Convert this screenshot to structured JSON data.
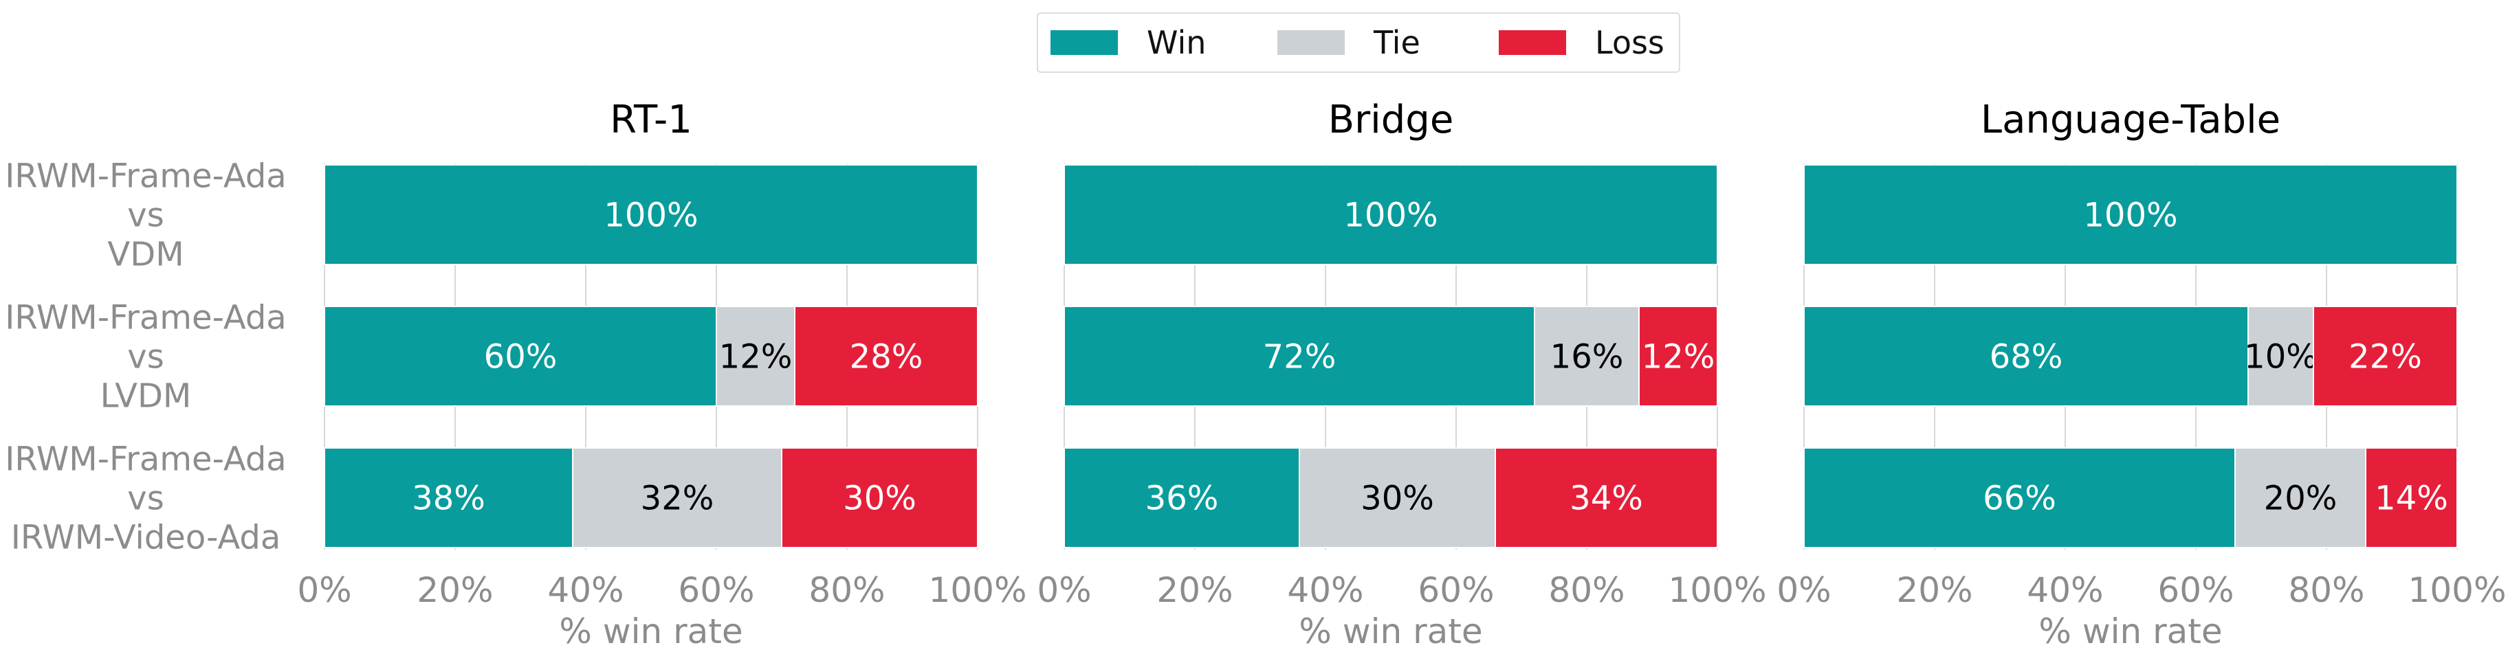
{
  "legend": {
    "items": [
      {
        "key": "win",
        "label": "Win",
        "color": "#089c9c"
      },
      {
        "key": "tie",
        "label": "Tie",
        "color": "#ccd1d6"
      },
      {
        "key": "loss",
        "label": "Loss",
        "color": "#e51f3a"
      }
    ]
  },
  "chart_data": [
    {
      "type": "bar",
      "orientation": "horizontal-stacked",
      "title": "RT-1",
      "categories": [
        "IRWM-Frame-Ada\nvs\nVDM",
        "IRWM-Frame-Ada\nvs\nLVDM",
        "IRWM-Frame-Ada\nvs\nIRWM-Video-Ada"
      ],
      "series": [
        {
          "name": "Win",
          "values": [
            100,
            60,
            38
          ]
        },
        {
          "name": "Tie",
          "values": [
            0,
            12,
            32
          ]
        },
        {
          "name": "Loss",
          "values": [
            0,
            28,
            30
          ]
        }
      ],
      "xlabel": "% win rate",
      "xlim": [
        0,
        100
      ],
      "xticks": [
        "0%",
        "20%",
        "40%",
        "60%",
        "80%",
        "100%"
      ],
      "grid": true
    },
    {
      "type": "bar",
      "orientation": "horizontal-stacked",
      "title": "Bridge",
      "categories": [
        "IRWM-Frame-Ada\nvs\nVDM",
        "IRWM-Frame-Ada\nvs\nLVDM",
        "IRWM-Frame-Ada\nvs\nIRWM-Video-Ada"
      ],
      "series": [
        {
          "name": "Win",
          "values": [
            100,
            72,
            36
          ]
        },
        {
          "name": "Tie",
          "values": [
            0,
            16,
            30
          ]
        },
        {
          "name": "Loss",
          "values": [
            0,
            12,
            34
          ]
        }
      ],
      "xlabel": "% win rate",
      "xlim": [
        0,
        100
      ],
      "xticks": [
        "0%",
        "20%",
        "40%",
        "60%",
        "80%",
        "100%"
      ],
      "grid": true
    },
    {
      "type": "bar",
      "orientation": "horizontal-stacked",
      "title": "Language-Table",
      "categories": [
        "IRWM-Frame-Ada\nvs\nVDM",
        "IRWM-Frame-Ada\nvs\nLVDM",
        "IRWM-Frame-Ada\nvs\nIRWM-Video-Ada"
      ],
      "series": [
        {
          "name": "Win",
          "values": [
            100,
            68,
            66
          ]
        },
        {
          "name": "Tie",
          "values": [
            0,
            10,
            20
          ]
        },
        {
          "name": "Loss",
          "values": [
            0,
            22,
            14
          ]
        }
      ],
      "xlabel": "% win rate",
      "xlim": [
        0,
        100
      ],
      "xticks": [
        "0%",
        "20%",
        "40%",
        "60%",
        "80%",
        "100%"
      ],
      "grid": true
    }
  ]
}
